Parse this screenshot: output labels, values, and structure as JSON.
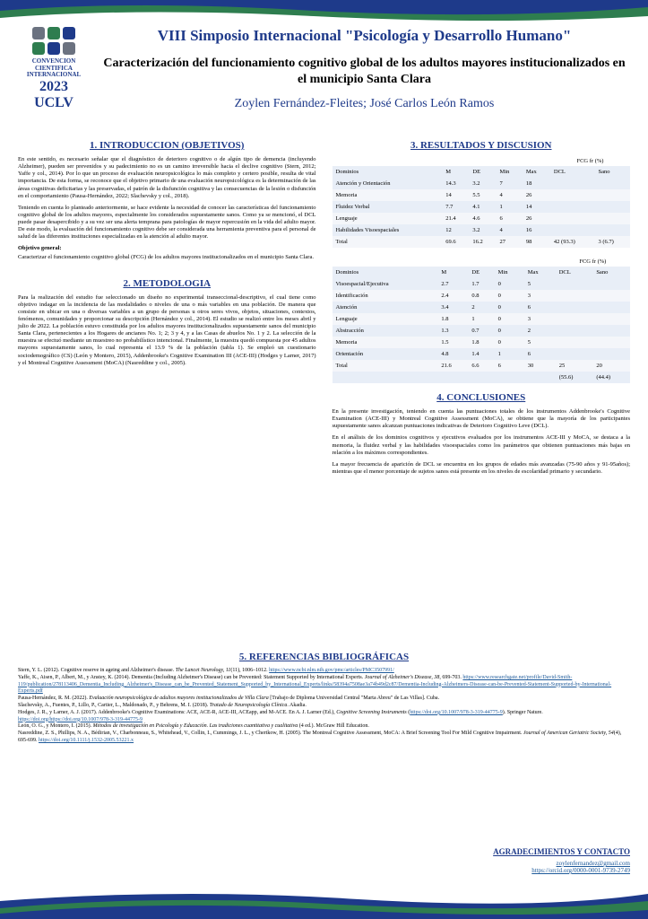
{
  "colors": {
    "navy": "#1e3a8a",
    "green": "#2e7d4f",
    "gray": "#6b7280",
    "link": "#1e5a9a",
    "table_row_light": "#f4f6fa",
    "table_row_dark": "#e8eef7"
  },
  "logo": {
    "squares": [
      "#6b7280",
      "#2e7d4f",
      "#1e3a8a",
      "#2e7d4f",
      "#1e3a8a",
      "#6b7280"
    ],
    "line1": "CONVENCION",
    "line2": "CIENTIFICA",
    "line3": "INTERNACIONAL",
    "year": "2023",
    "org": "UCLV"
  },
  "header": {
    "conf": "VIII Simposio Internacional \"Psicología y Desarrollo Humano\"",
    "title": "Caracterización del funcionamiento cognitivo global de los adultos mayores institucionalizados en el municipio Santa Clara",
    "authors": "Zoylen Fernández-Fleites; José Carlos León Ramos"
  },
  "sections": {
    "intro_title": "1. INTRODUCCION (OBJETIVOS)",
    "intro_p1": "En este sentido, es necesario señalar que el diagnóstico de deterioro cognitivo o de algún tipo de demencia (incluyendo Alzheimer), pueden ser prevenidos y su padecimiento no es un camino irreversible hacia el declive cognitivo (Stern, 2012; Yaffe y col., 2014). Por lo que un proceso de evaluación neuropsicológica lo más completo y certero posible, resulta de vital importancia. De esta forma, se reconoce que el objetivo primario de una evaluación neuropsicológica es la determinación de las áreas cognitivas deficitarias y las preservadas, el patrón de la disfunción cognitiva y las consecuencias de la lesión o disfunción en el comportamiento (Pausa-Hernández, 2022; Slachevsky y col., 2018).",
    "intro_p2": "Teniendo en cuenta lo planteado anteriormente, se hace evidente la necesidad de conocer las características del funcionamiento cognitivo global de los adultos mayores, especialmente los considerados supuestamente sanos. Como ya se mencionó, el DCL puede pasar desapercibido y a su vez ser una alerta temprana para patologías de mayor repercusión en la vida del adulto mayor. De este modo, la evaluación del funcionamiento cognitivo debe ser considerada una herramienta preventiva para el personal de salud de las diferentes instituciones especializadas en la atención al adulto mayor.",
    "obj_label": "Objetivo general:",
    "obj_text": "Caracterizar el funcionamiento cognitivo global (FCG) de los adultos mayores institucionalizados en el municipio Santa Clara.",
    "metodo_title": "2. METODOLOGIA",
    "metodo_p1": "Para la realización del estudio fue seleccionado un diseño no experimental transeccional-descriptivo, el cual tiene como objetivo indagar en la incidencia de las modalidades o niveles de una o más variables en una población. De manera que consiste en ubicar en una o diversas variables a un grupo de personas u otros seres vivos, objetos, situaciones, contextos, fenómenos, comunidades y proporcionar su descripción (Hernández y col., 2014). El estudio se realizó entre los meses abril y julio de 2022. La población estuvo constituida por los adultos mayores institucionalizados supuestamente sanos del municipio Santa Clara, pertenecientes a los Hogares de ancianos No. 1; 2; 3 y 4, y a las Casas de abuelos No. 1 y 2. La selección de la muestra se efectuó mediante un muestreo no probabilístico intencional. Finalmente, la muestra quedó compuesta por 45 adultos mayores supuestamente sanos, lo cual representa el 13.9 % de la población (tabla 1). Se empleó un cuestionario sociodemográfico (CS) (León y Montero, 2015), Addenbrooke's Cognitive Examination III (ACE-III) (Hodges y Larner, 2017) y el Montreal Cognitive Assessment (MoCA) (Nasreddine y col., 2005).",
    "results_title": "3. RESULTADOS Y DISCUSION",
    "concl_title": "4. CONCLUSIONES",
    "concl_p1": "En la presente investigación, teniendo en cuenta las puntuaciones totales de los instrumentos Addenbrooke's Cognitive Examination (ACE-III) y Montreal Cognitive Assessment (MoCA), se obtiene que la mayoría de los participantes supuestamente sanos alcanzan puntuaciones indicativas de Deterioro Cognitivo Leve (DCL).",
    "concl_p2": "En el análisis de los dominios cognitivos y ejecutivos evaluados por los instrumentos ACE-III y MoCA, se destaca a la memoria, la fluidez verbal y las habilidades visoespaciales como los parámetros que obtienen puntuaciones más bajas en relación a los máximos correspondientes.",
    "concl_p3": "La mayor frecuencia de aparición de DCL se encuentra en los grupos de edades más avanzadas (75-90 años y 91-95años); mientras que el menor porcentaje de sujetos sanos está presente en los niveles de escolaridad primario y secundario.",
    "refs_title": "5. REFERENCIAS BIBLIOGRÁFICAS",
    "ack_title": "AGRADECIMIENTOS Y CONTACTO"
  },
  "table1": {
    "fcg_label": "FCG fr (%)",
    "headers": [
      "Dominios",
      "M",
      "DE",
      "Min",
      "Max",
      "DCL",
      "Sano"
    ],
    "rows": [
      [
        "Atención y Orientación",
        "14.3",
        "3.2",
        "7",
        "18",
        "",
        ""
      ],
      [
        "Memoria",
        "14",
        "5.5",
        "4",
        "26",
        "",
        ""
      ],
      [
        "Fluidez Verbal",
        "7.7",
        "4.1",
        "1",
        "14",
        "",
        ""
      ],
      [
        "Lenguaje",
        "21.4",
        "4.6",
        "6",
        "26",
        "",
        ""
      ],
      [
        "Habilidades Visoespaciales",
        "12",
        "3.2",
        "4",
        "16",
        "",
        ""
      ],
      [
        "Total",
        "69.6",
        "16.2",
        "27",
        "98",
        "42 (93.3)",
        "3 (6.7)"
      ]
    ]
  },
  "table2": {
    "fcg_label": "FCG fr (%)",
    "headers": [
      "Dominios",
      "M",
      "DE",
      "Min",
      "Max",
      "DCL",
      "Sano"
    ],
    "rows": [
      [
        "Visoespacial/Ejecutiva",
        "2.7",
        "1.7",
        "0",
        "5",
        "",
        ""
      ],
      [
        "Identificación",
        "2.4",
        "0.8",
        "0",
        "3",
        "",
        ""
      ],
      [
        "Atención",
        "3.4",
        "2",
        "0",
        "6",
        "",
        ""
      ],
      [
        "Lenguaje",
        "1.8",
        "1",
        "0",
        "3",
        "",
        ""
      ],
      [
        "Abstracción",
        "1.3",
        "0.7",
        "0",
        "2",
        "",
        ""
      ],
      [
        "Memoria",
        "1.5",
        "1.8",
        "0",
        "5",
        "",
        ""
      ],
      [
        "Orientación",
        "4.8",
        "1.4",
        "1",
        "6",
        "",
        ""
      ],
      [
        "Total",
        "21.6",
        "6.6",
        "6",
        "30",
        "25",
        "20"
      ]
    ],
    "footer": [
      "",
      "",
      "",
      "",
      "",
      "(55.6)",
      "(44.4)"
    ]
  },
  "refs": [
    "Stern, Y. L. (2012). Cognitive reserve in ageing and Alzheimer's disease. <i>The Lancet Neurology, 11</i>(11), 1006–1012. <a>https://www.ncbi.nlm.nih.gov/pmc/articles/PMC3507991/</a>",
    "Yaffe, K., Aisen, P., Albert, M., y Anstey, K. (2014). Dementia (Including Alzheimer's Disease) can be Prevented: Statement Supported by International Experts. <i>Journal of Alzheimer's Disease, 38</i>, 699-703. <a>https://www.researchgate.net/profile/David-Smith-119/publication/278113406_Dementia_Including_Alzheimer's_Disease_can_be_Prevented_Statement_Supported_by_International_Experts/links/58394a7508ae3a74b49d2c87/Dementia-Including-Alzheimers-Disease-can-be-Prevented-Statement-Supported-by-International-Experts.pdf</a>",
    "Pausa-Hernández, R. M. (2022). <i>Evaluación neuropsicológica de adultos mayores institucionalizados de Villa Clara</i> [Trabajo de Diploma Universidad Central \"Marta Abreu\" de Las Villas]. Cuba.",
    "Slachevsky, A., Fuentes, P., Lillo, P., Cartier, L., Maldonado, P., y Behrens, M. I. (2018). <i>Tratado de Neuropsicología Clínica</i>. Akadia.",
    "Hodges, J. R., y Larner, A. J. (2017). Addenbrooke's Cognitive Examinations: ACE, ACE-R, ACE-III, ACEapp, and M-ACE. En A. J. Larner (Ed.), <i>Cognitive Screening Instruments</i> (<a>https://doi.org/10.1007/978-3-319-44775-9</a>). Springer Nature. <a>https://doi.org/https://doi.org/10.1007/978-3-319-44775-9</a>",
    "León, O. G., y Montero, I. (2015). <i>Métodos de investigación en Psicología y Educación. Las tradiciones cuantitativa y cualitativa</i> (4 ed.). McGraw Hill Education.",
    "Nasreddine, Z. S., Phillips, N. A., Bédirian, V., Charbonneau, S., Whitehead, V., Collin, I., Cummings, J. L., y Chertkow, H. (2005). The Montreal Cognitive Assessment, MoCA: A Brief Screening Tool For Mild Cognitive Impairment. <i>Journal of American Geriatric Society, 54</i>(4), 695-699. <a>https://doi.org/10.1111/j.1532-2005.53221.x</a>"
  ],
  "contact": {
    "email": "zoylenfernandez@gmail.com",
    "orcid": "https://orcid.org/0000-0001-9739-2749"
  }
}
